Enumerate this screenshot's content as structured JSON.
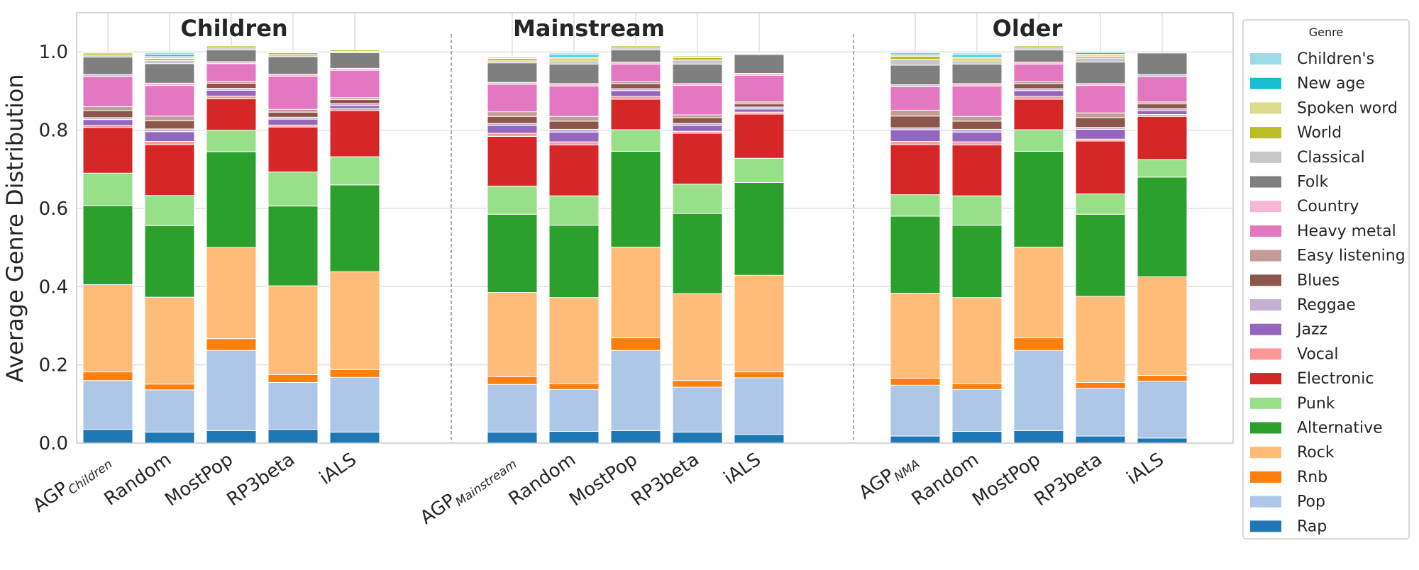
{
  "chart_data": {
    "type": "bar",
    "stacked": true,
    "ylabel": "Average Genre Distribution",
    "ylim": [
      0,
      1.1
    ],
    "yticks": [
      "0.0",
      "0.2",
      "0.4",
      "0.6",
      "0.8",
      "1.0"
    ],
    "grid": true,
    "legend": {
      "title": "Genre",
      "placement": "right"
    },
    "genres": [
      "Rap",
      "Pop",
      "Rnb",
      "Rock",
      "Alternative",
      "Punk",
      "Electronic",
      "Vocal",
      "Jazz",
      "Reggae",
      "Blues",
      "Easy listening",
      "Heavy metal",
      "Country",
      "Folk",
      "Classical",
      "World",
      "Spoken word",
      "New age",
      "Children's"
    ],
    "colors": {
      "Rap": "#1f77b4",
      "Pop": "#aec7e8",
      "Rnb": "#ff7f0e",
      "Rock": "#ffbb78",
      "Alternative": "#2ca02c",
      "Punk": "#98df8a",
      "Electronic": "#d62728",
      "Vocal": "#ff9896",
      "Jazz": "#9467bd",
      "Reggae": "#c5b0d5",
      "Blues": "#8c564b",
      "Easy listening": "#c49c94",
      "Heavy metal": "#e377c2",
      "Country": "#f7b6d2",
      "Folk": "#7f7f7f",
      "Classical": "#c7c7c7",
      "World": "#bcbd22",
      "Spoken word": "#dbdb8d",
      "New age": "#17becf",
      "Children's": "#9edae5"
    },
    "groups": [
      {
        "title": "Children",
        "bars": [
          {
            "label": "AGP",
            "subscript": "Children",
            "values": [
              0.035,
              0.125,
              0.022,
              0.223,
              0.202,
              0.083,
              0.117,
              0.005,
              0.015,
              0.005,
              0.018,
              0.01,
              0.077,
              0.005,
              0.045,
              0.005,
              0.005,
              0.003,
              0.0,
              0.0
            ]
          },
          {
            "label": "Random",
            "values": [
              0.028,
              0.108,
              0.015,
              0.222,
              0.183,
              0.077,
              0.13,
              0.008,
              0.025,
              0.007,
              0.021,
              0.012,
              0.078,
              0.006,
              0.05,
              0.008,
              0.005,
              0.005,
              0.005,
              0.005
            ]
          },
          {
            "label": "MostPop",
            "values": [
              0.032,
              0.205,
              0.03,
              0.233,
              0.245,
              0.055,
              0.08,
              0.007,
              0.015,
              0.005,
              0.013,
              0.005,
              0.045,
              0.005,
              0.03,
              0.005,
              0.005,
              0.0,
              0.0,
              0.0
            ]
          },
          {
            "label": "RP3beta",
            "values": [
              0.035,
              0.12,
              0.02,
              0.227,
              0.204,
              0.087,
              0.115,
              0.005,
              0.015,
              0.005,
              0.013,
              0.007,
              0.085,
              0.005,
              0.045,
              0.005,
              0.005,
              0.002,
              0.0,
              0.0
            ]
          },
          {
            "label": "iALS",
            "values": [
              0.028,
              0.14,
              0.02,
              0.25,
              0.222,
              0.072,
              0.118,
              0.005,
              0.008,
              0.005,
              0.01,
              0.005,
              0.07,
              0.005,
              0.04,
              0.003,
              0.004,
              0.0,
              0.0,
              0.0
            ]
          }
        ]
      },
      {
        "title": "Mainstream",
        "bars": [
          {
            "label": "AGP",
            "subscript": "Mainstream",
            "values": [
              0.028,
              0.122,
              0.02,
              0.215,
              0.2,
              0.072,
              0.127,
              0.008,
              0.02,
              0.005,
              0.018,
              0.012,
              0.07,
              0.005,
              0.05,
              0.005,
              0.006,
              0.004,
              0.0,
              0.0
            ]
          },
          {
            "label": "Random",
            "values": [
              0.03,
              0.107,
              0.015,
              0.22,
              0.185,
              0.075,
              0.13,
              0.008,
              0.025,
              0.007,
              0.021,
              0.012,
              0.078,
              0.006,
              0.05,
              0.008,
              0.005,
              0.005,
              0.005,
              0.005
            ]
          },
          {
            "label": "MostPop",
            "values": [
              0.032,
              0.205,
              0.032,
              0.232,
              0.245,
              0.055,
              0.078,
              0.007,
              0.015,
              0.005,
              0.013,
              0.005,
              0.045,
              0.005,
              0.031,
              0.005,
              0.005,
              0.0,
              0.0,
              0.0
            ]
          },
          {
            "label": "RP3beta",
            "values": [
              0.028,
              0.115,
              0.017,
              0.222,
              0.205,
              0.075,
              0.13,
              0.005,
              0.015,
              0.005,
              0.015,
              0.007,
              0.075,
              0.005,
              0.05,
              0.01,
              0.006,
              0.005,
              0.0,
              0.0
            ]
          },
          {
            "label": "iALS",
            "values": [
              0.022,
              0.145,
              0.015,
              0.247,
              0.237,
              0.062,
              0.113,
              0.005,
              0.008,
              0.005,
              0.008,
              0.005,
              0.068,
              0.005,
              0.048,
              0.003,
              0.002,
              0.0,
              0.0,
              0.0
            ]
          }
        ]
      },
      {
        "title": "Older",
        "bars": [
          {
            "label": "AGP",
            "subscript": "NMA",
            "values": [
              0.018,
              0.13,
              0.018,
              0.217,
              0.197,
              0.055,
              0.128,
              0.008,
              0.03,
              0.005,
              0.03,
              0.015,
              0.06,
              0.005,
              0.05,
              0.015,
              0.008,
              0.004,
              0.004,
              0.0
            ]
          },
          {
            "label": "Random",
            "values": [
              0.03,
              0.107,
              0.015,
              0.22,
              0.185,
              0.075,
              0.13,
              0.008,
              0.025,
              0.007,
              0.021,
              0.012,
              0.078,
              0.006,
              0.05,
              0.008,
              0.005,
              0.005,
              0.005,
              0.005
            ]
          },
          {
            "label": "MostPop",
            "values": [
              0.032,
              0.205,
              0.032,
              0.232,
              0.245,
              0.055,
              0.078,
              0.007,
              0.015,
              0.005,
              0.013,
              0.005,
              0.045,
              0.005,
              0.031,
              0.005,
              0.005,
              0.0,
              0.0,
              0.0
            ]
          },
          {
            "label": "RP3beta",
            "values": [
              0.018,
              0.122,
              0.015,
              0.22,
              0.21,
              0.052,
              0.135,
              0.005,
              0.025,
              0.005,
              0.025,
              0.012,
              0.07,
              0.005,
              0.055,
              0.01,
              0.005,
              0.005,
              0.004,
              0.0
            ]
          },
          {
            "label": "iALS",
            "values": [
              0.013,
              0.145,
              0.015,
              0.252,
              0.255,
              0.045,
              0.11,
              0.005,
              0.01,
              0.005,
              0.012,
              0.005,
              0.065,
              0.005,
              0.055,
              0.0,
              0.0,
              0.0,
              0.0,
              0.0
            ]
          }
        ]
      }
    ]
  }
}
